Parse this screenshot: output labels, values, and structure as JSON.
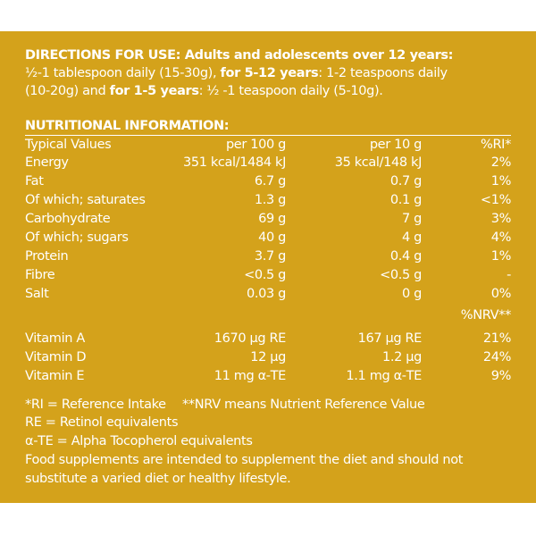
{
  "directions": {
    "line1_bold": "DIRECTIONS FOR USE: Adults and adolescents over 12 years:",
    "line2_a": " ½-1 tablespoon daily (15-30g), ",
    "line2_b": "for 5-12 years",
    "line2_c": ": 1-2 teaspoons daily",
    "line3_a": "(10-20g) and ",
    "line3_b": "for 1-5 years",
    "line3_c": ": ½ -1 teaspoon daily (5-10g)."
  },
  "nutrition": {
    "heading": "NUTRITIONAL INFORMATION:",
    "header": {
      "name": "Typical Values",
      "p100": "per 100 g",
      "p10": "per 10 g",
      "ri": "%RI*"
    },
    "rows": [
      {
        "name": "Energy",
        "p100": "351 kcal/1484 kJ",
        "p10": "35 kcal/148 kJ",
        "ri": "2%"
      },
      {
        "name": "Fat",
        "p100": "6.7 g",
        "p10": "0.7 g",
        "ri": "1%"
      },
      {
        "name": "Of which; saturates",
        "p100": "1.3 g",
        "p10": "0.1 g",
        "ri": "<1%"
      },
      {
        "name": "Carbohydrate",
        "p100": "69 g",
        "p10": "7 g",
        "ri": "3%"
      },
      {
        "name": "Of which; sugars",
        "p100": "40 g",
        "p10": "4 g",
        "ri": "4%"
      },
      {
        "name": "Protein",
        "p100": "3.7 g",
        "p10": "0.4 g",
        "ri": "1%"
      },
      {
        "name": "Fibre",
        "p100": "<0.5 g",
        "p10": "<0.5 g",
        "ri": "-"
      },
      {
        "name": "Salt",
        "p100": "0.03 g",
        "p10": "0 g",
        "ri": "0%"
      }
    ],
    "nrv_header": "%NRV**",
    "vitamins": [
      {
        "name": "Vitamin A",
        "p100": "1670 µg RE",
        "p10": "167 µg RE",
        "ri": "21%"
      },
      {
        "name": "Vitamin D",
        "p100": "12 µg",
        "p10": "1.2 µg",
        "ri": "24%"
      },
      {
        "name": "Vitamin E",
        "p100": "11 mg α-TE",
        "p10": "1.1 mg α-TE",
        "ri": "9%"
      }
    ]
  },
  "footnotes": {
    "ri": "*RI = Reference Intake",
    "nrv": "**NRV means Nutrient Reference Value",
    "re": "RE = Retinol equivalents",
    "te": "α-TE = Alpha Tocopherol equivalents",
    "supp1": "Food supplements are intended to supplement the diet and should not",
    "supp2": "substitute a varied diet or healthy lifestyle."
  }
}
